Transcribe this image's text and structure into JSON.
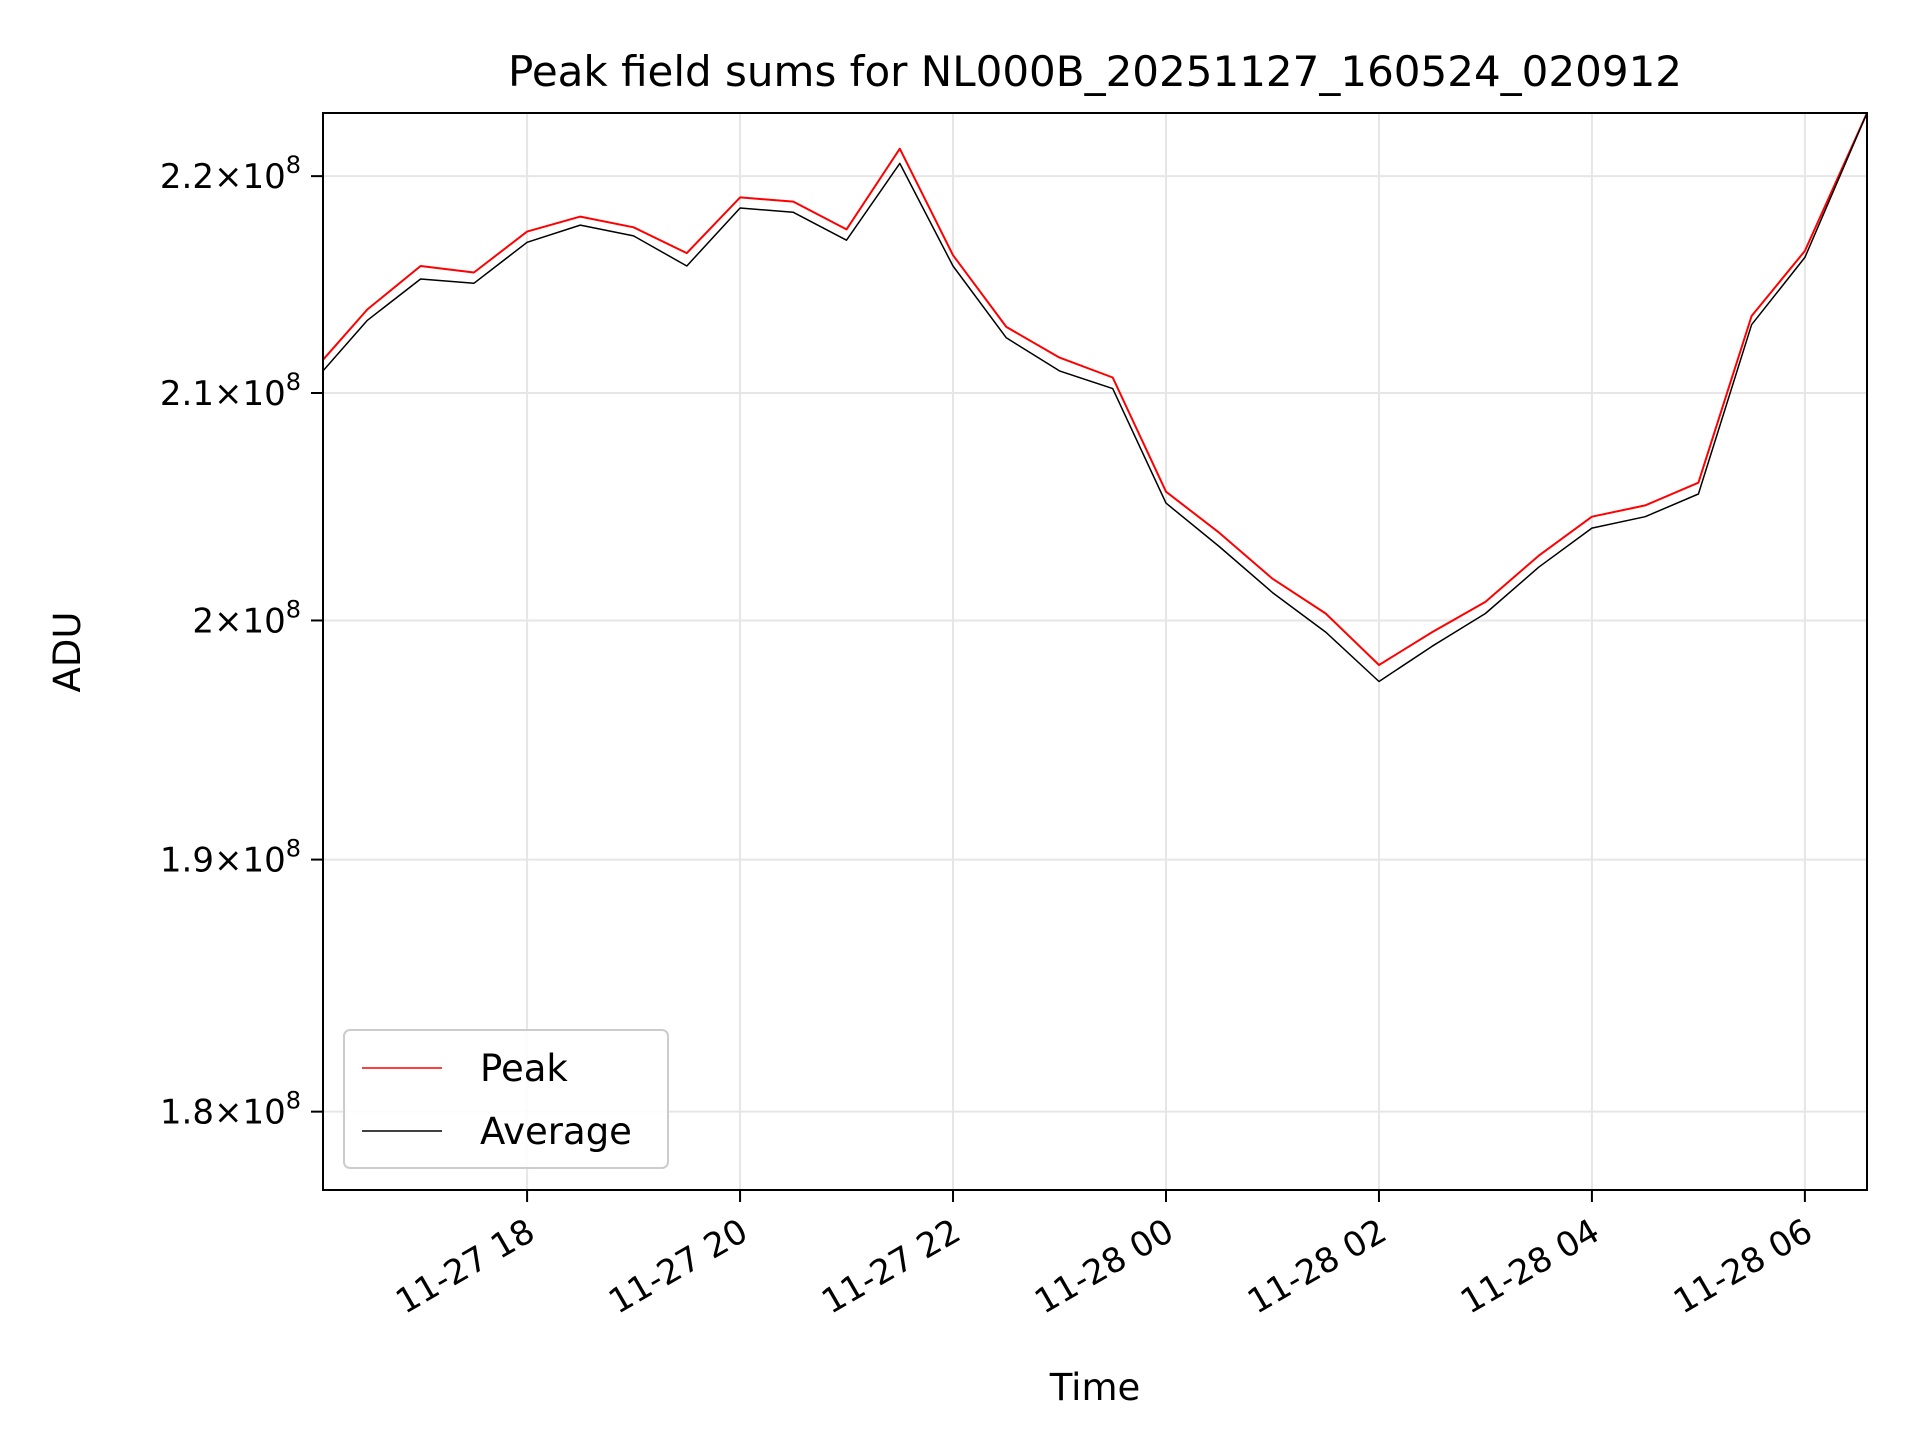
{
  "chart_data": {
    "type": "line",
    "title": "Peak field sums for NL000B_20251127_160524_020912",
    "xlabel": "Time",
    "ylabel": "ADU",
    "y_scale": "log",
    "xlim": [
      "2025-11-27 16:05",
      "2025-11-28 06:35"
    ],
    "ylim": [
      177000000,
      223000000
    ],
    "x_ticks": [
      "11-27 18",
      "11-27 20",
      "11-27 22",
      "11-28 00",
      "11-28 02",
      "11-28 04",
      "11-28 06"
    ],
    "x_tick_values": [
      "2025-11-27 18:00",
      "2025-11-27 20:00",
      "2025-11-27 22:00",
      "2025-11-28 00:00",
      "2025-11-28 02:00",
      "2025-11-28 04:00",
      "2025-11-28 06:00"
    ],
    "y_ticks": [
      {
        "value": 180000000,
        "mantissa": "1.8",
        "base": "10",
        "exp": "8"
      },
      {
        "value": 190000000,
        "mantissa": "1.9",
        "base": "10",
        "exp": "8"
      },
      {
        "value": 200000000,
        "mantissa": "2",
        "base": "10",
        "exp": "8"
      },
      {
        "value": 210000000,
        "mantissa": "2.1",
        "base": "10",
        "exp": "8"
      },
      {
        "value": 220000000,
        "mantissa": "2.2",
        "base": "10",
        "exp": "8"
      }
    ],
    "grid": true,
    "legend_position": "lower-left",
    "series": [
      {
        "name": "Peak",
        "color": "#ff0000",
        "x": [
          "2025-11-27 16:05",
          "2025-11-27 16:30",
          "2025-11-27 17:00",
          "2025-11-27 17:30",
          "2025-11-27 18:00",
          "2025-11-27 18:30",
          "2025-11-27 19:00",
          "2025-11-27 19:30",
          "2025-11-27 20:00",
          "2025-11-27 20:30",
          "2025-11-27 21:00",
          "2025-11-27 21:30",
          "2025-11-27 22:00",
          "2025-11-27 22:30",
          "2025-11-27 23:00",
          "2025-11-27 23:30",
          "2025-11-28 00:00",
          "2025-11-28 00:30",
          "2025-11-28 01:00",
          "2025-11-28 01:30",
          "2025-11-28 02:00",
          "2025-11-28 02:30",
          "2025-11-28 03:00",
          "2025-11-28 03:30",
          "2025-11-28 04:00",
          "2025-11-28 04:30",
          "2025-11-28 05:00",
          "2025-11-28 05:30",
          "2025-11-28 06:00",
          "2025-11-28 06:35"
        ],
        "values": [
          211500000,
          213800000,
          215800000,
          215500000,
          217400000,
          218100000,
          217600000,
          216400000,
          219000000,
          218800000,
          217500000,
          221300000,
          216300000,
          213000000,
          211600000,
          210700000,
          205600000,
          203800000,
          201800000,
          200300000,
          198100000,
          199500000,
          200800000,
          202800000,
          204500000,
          205000000,
          206000000,
          213500000,
          216500000,
          223000000
        ]
      },
      {
        "name": "Average",
        "color": "#000000",
        "x": [
          "2025-11-27 16:05",
          "2025-11-27 16:30",
          "2025-11-27 17:00",
          "2025-11-27 17:30",
          "2025-11-27 18:00",
          "2025-11-27 18:30",
          "2025-11-27 19:00",
          "2025-11-27 19:30",
          "2025-11-27 20:00",
          "2025-11-27 20:30",
          "2025-11-27 21:00",
          "2025-11-27 21:30",
          "2025-11-27 22:00",
          "2025-11-27 22:30",
          "2025-11-27 23:00",
          "2025-11-27 23:30",
          "2025-11-28 00:00",
          "2025-11-28 00:30",
          "2025-11-28 01:00",
          "2025-11-28 01:30",
          "2025-11-28 02:00",
          "2025-11-28 02:30",
          "2025-11-28 03:00",
          "2025-11-28 03:30",
          "2025-11-28 04:00",
          "2025-11-28 04:30",
          "2025-11-28 05:00",
          "2025-11-28 05:30",
          "2025-11-28 06:00",
          "2025-11-28 06:35"
        ],
        "values": [
          211000000,
          213300000,
          215200000,
          215000000,
          216900000,
          217700000,
          217200000,
          215800000,
          218500000,
          218300000,
          217000000,
          220600000,
          215800000,
          212500000,
          211000000,
          210200000,
          205100000,
          203200000,
          201200000,
          199500000,
          197400000,
          198900000,
          200300000,
          202300000,
          204000000,
          204500000,
          205500000,
          213100000,
          216200000,
          223000000
        ]
      }
    ]
  }
}
